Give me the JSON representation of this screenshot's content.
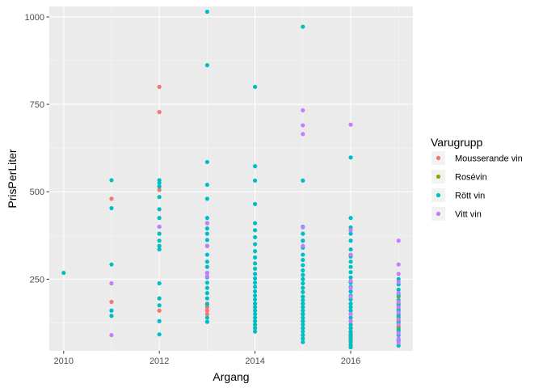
{
  "chart_data": {
    "type": "scatter",
    "xlabel": "Argang",
    "ylabel": "PrisPerLiter",
    "xlim": [
      2009.7,
      2017.3
    ],
    "ylim": [
      45,
      1030
    ],
    "x_ticks": [
      2010,
      2012,
      2014,
      2016
    ],
    "y_ticks": [
      250,
      500,
      750,
      1000
    ],
    "grid": true,
    "legend": {
      "title": "Varugrupp",
      "placement": "right"
    },
    "series": [
      {
        "name": "Mousserande vin",
        "color": "#F8766D",
        "points": [
          [
            2011,
            480
          ],
          [
            2011,
            185
          ],
          [
            2012,
            800
          ],
          [
            2012,
            728
          ],
          [
            2012,
            505
          ],
          [
            2012,
            160
          ],
          [
            2013,
            180
          ],
          [
            2013,
            170
          ],
          [
            2013,
            160
          ],
          [
            2013,
            150
          ],
          [
            2014,
            180
          ],
          [
            2014,
            170
          ],
          [
            2015,
            150
          ],
          [
            2015,
            130
          ],
          [
            2016,
            120
          ],
          [
            2016,
            110
          ],
          [
            2016,
            100
          ],
          [
            2016,
            95
          ],
          [
            2016,
            85
          ],
          [
            2016,
            80
          ],
          [
            2016,
            70
          ],
          [
            2017,
            110
          ],
          [
            2017,
            100
          ]
        ]
      },
      {
        "name": "Rosévin",
        "color": "#7CAE00",
        "points": [
          [
            2016,
            90
          ],
          [
            2016,
            75
          ],
          [
            2017,
            200
          ],
          [
            2017,
            180
          ],
          [
            2017,
            165
          ],
          [
            2017,
            145
          ],
          [
            2017,
            130
          ],
          [
            2017,
            115
          ]
        ]
      },
      {
        "name": "Rött vin",
        "color": "#00BFC4",
        "points": [
          [
            2010,
            268
          ],
          [
            2011,
            533
          ],
          [
            2011,
            453
          ],
          [
            2011,
            292
          ],
          [
            2011,
            160
          ],
          [
            2011,
            145
          ],
          [
            2012,
            533
          ],
          [
            2012,
            525
          ],
          [
            2012,
            515
          ],
          [
            2012,
            485
          ],
          [
            2012,
            450
          ],
          [
            2012,
            425
          ],
          [
            2012,
            400
          ],
          [
            2012,
            380
          ],
          [
            2012,
            360
          ],
          [
            2012,
            345
          ],
          [
            2012,
            335
          ],
          [
            2012,
            238
          ],
          [
            2012,
            195
          ],
          [
            2012,
            175
          ],
          [
            2012,
            130
          ],
          [
            2012,
            92
          ],
          [
            2013,
            1015
          ],
          [
            2013,
            862
          ],
          [
            2013,
            585
          ],
          [
            2013,
            520
          ],
          [
            2013,
            480
          ],
          [
            2013,
            425
          ],
          [
            2013,
            410
          ],
          [
            2013,
            395
          ],
          [
            2013,
            380
          ],
          [
            2013,
            362
          ],
          [
            2013,
            345
          ],
          [
            2013,
            320
          ],
          [
            2013,
            300
          ],
          [
            2013,
            285
          ],
          [
            2013,
            268
          ],
          [
            2013,
            255
          ],
          [
            2013,
            240
          ],
          [
            2013,
            225
          ],
          [
            2013,
            210
          ],
          [
            2013,
            195
          ],
          [
            2013,
            178
          ],
          [
            2013,
            140
          ],
          [
            2013,
            128
          ],
          [
            2014,
            800
          ],
          [
            2014,
            573
          ],
          [
            2014,
            532
          ],
          [
            2014,
            465
          ],
          [
            2014,
            410
          ],
          [
            2014,
            390
          ],
          [
            2014,
            370
          ],
          [
            2014,
            350
          ],
          [
            2014,
            330
          ],
          [
            2014,
            312
          ],
          [
            2014,
            295
          ],
          [
            2014,
            280
          ],
          [
            2014,
            265
          ],
          [
            2014,
            252
          ],
          [
            2014,
            240
          ],
          [
            2014,
            228
          ],
          [
            2014,
            215
          ],
          [
            2014,
            203
          ],
          [
            2014,
            192
          ],
          [
            2014,
            180
          ],
          [
            2014,
            170
          ],
          [
            2014,
            160
          ],
          [
            2014,
            150
          ],
          [
            2014,
            140
          ],
          [
            2014,
            130
          ],
          [
            2014,
            120
          ],
          [
            2014,
            110
          ],
          [
            2014,
            100
          ],
          [
            2015,
            972
          ],
          [
            2015,
            532
          ],
          [
            2015,
            400
          ],
          [
            2015,
            380
          ],
          [
            2015,
            360
          ],
          [
            2015,
            340
          ],
          [
            2015,
            320
          ],
          [
            2015,
            305
          ],
          [
            2015,
            290
          ],
          [
            2015,
            275
          ],
          [
            2015,
            262
          ],
          [
            2015,
            250
          ],
          [
            2015,
            238
          ],
          [
            2015,
            225
          ],
          [
            2015,
            213
          ],
          [
            2015,
            200
          ],
          [
            2015,
            190
          ],
          [
            2015,
            180
          ],
          [
            2015,
            170
          ],
          [
            2015,
            160
          ],
          [
            2015,
            150
          ],
          [
            2015,
            140
          ],
          [
            2015,
            130
          ],
          [
            2015,
            120
          ],
          [
            2015,
            110
          ],
          [
            2015,
            100
          ],
          [
            2015,
            90
          ],
          [
            2015,
            80
          ],
          [
            2015,
            70
          ],
          [
            2016,
            598
          ],
          [
            2016,
            425
          ],
          [
            2016,
            398
          ],
          [
            2016,
            380
          ],
          [
            2016,
            360
          ],
          [
            2016,
            335
          ],
          [
            2016,
            315
          ],
          [
            2016,
            300
          ],
          [
            2016,
            285
          ],
          [
            2016,
            270
          ],
          [
            2016,
            255
          ],
          [
            2016,
            240
          ],
          [
            2016,
            228
          ],
          [
            2016,
            215
          ],
          [
            2016,
            203
          ],
          [
            2016,
            192
          ],
          [
            2016,
            180
          ],
          [
            2016,
            170
          ],
          [
            2016,
            160
          ],
          [
            2016,
            150
          ],
          [
            2016,
            140
          ],
          [
            2016,
            130
          ],
          [
            2016,
            120
          ],
          [
            2016,
            110
          ],
          [
            2016,
            100
          ],
          [
            2016,
            90
          ],
          [
            2016,
            80
          ],
          [
            2016,
            70
          ],
          [
            2016,
            62
          ],
          [
            2016,
            55
          ],
          [
            2017,
            250
          ],
          [
            2017,
            235
          ],
          [
            2017,
            220
          ],
          [
            2017,
            205
          ],
          [
            2017,
            190
          ],
          [
            2017,
            175
          ],
          [
            2017,
            160
          ],
          [
            2017,
            150
          ],
          [
            2017,
            140
          ],
          [
            2017,
            125
          ],
          [
            2017,
            105
          ],
          [
            2017,
            90
          ],
          [
            2017,
            75
          ],
          [
            2017,
            60
          ]
        ]
      },
      {
        "name": "Vitt vin",
        "color": "#C77CFF",
        "points": [
          [
            2011,
            238
          ],
          [
            2011,
            90
          ],
          [
            2012,
            400
          ],
          [
            2013,
            410
          ],
          [
            2013,
            345
          ],
          [
            2013,
            268
          ],
          [
            2013,
            258
          ],
          [
            2015,
            733
          ],
          [
            2015,
            690
          ],
          [
            2015,
            665
          ],
          [
            2015,
            398
          ],
          [
            2015,
            345
          ],
          [
            2016,
            692
          ],
          [
            2016,
            390
          ],
          [
            2016,
            320
          ],
          [
            2016,
            245
          ],
          [
            2016,
            225
          ],
          [
            2016,
            200
          ],
          [
            2016,
            150
          ],
          [
            2016,
            130
          ],
          [
            2017,
            360
          ],
          [
            2017,
            292
          ],
          [
            2017,
            265
          ],
          [
            2017,
            242
          ],
          [
            2017,
            210
          ],
          [
            2017,
            185
          ],
          [
            2017,
            170
          ],
          [
            2017,
            155
          ],
          [
            2017,
            135
          ],
          [
            2017,
            120
          ],
          [
            2017,
            95
          ],
          [
            2017,
            80
          ],
          [
            2017,
            68
          ]
        ]
      }
    ]
  }
}
